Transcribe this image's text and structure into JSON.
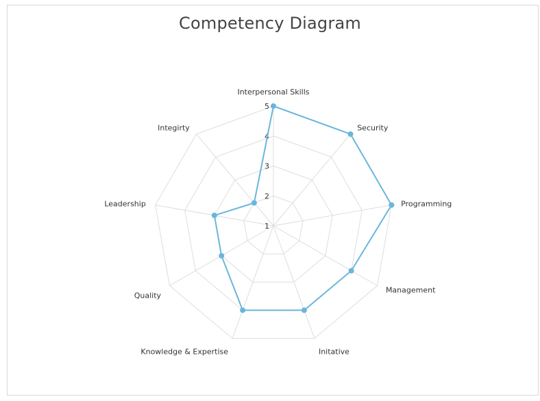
{
  "chart_data": {
    "type": "radar",
    "title": "Competency Diagram",
    "axes": [
      "Interpersonal Skills",
      "Security",
      "Programming",
      "Management",
      "Initative",
      "Knowledge & Expertise",
      "Quality",
      "Leadership",
      "Integirty"
    ],
    "values": [
      5,
      5,
      5,
      4,
      4,
      4,
      3,
      3,
      2
    ],
    "radial_ticks": [
      "1",
      "2",
      "3",
      "4",
      "5"
    ],
    "range": [
      1,
      5
    ],
    "grid": true,
    "grid_shape": "polygon",
    "legend": "none",
    "colors": {
      "series": "#6bb5dc",
      "grid": "#dddddd",
      "frame": "#d8d8d8"
    }
  }
}
